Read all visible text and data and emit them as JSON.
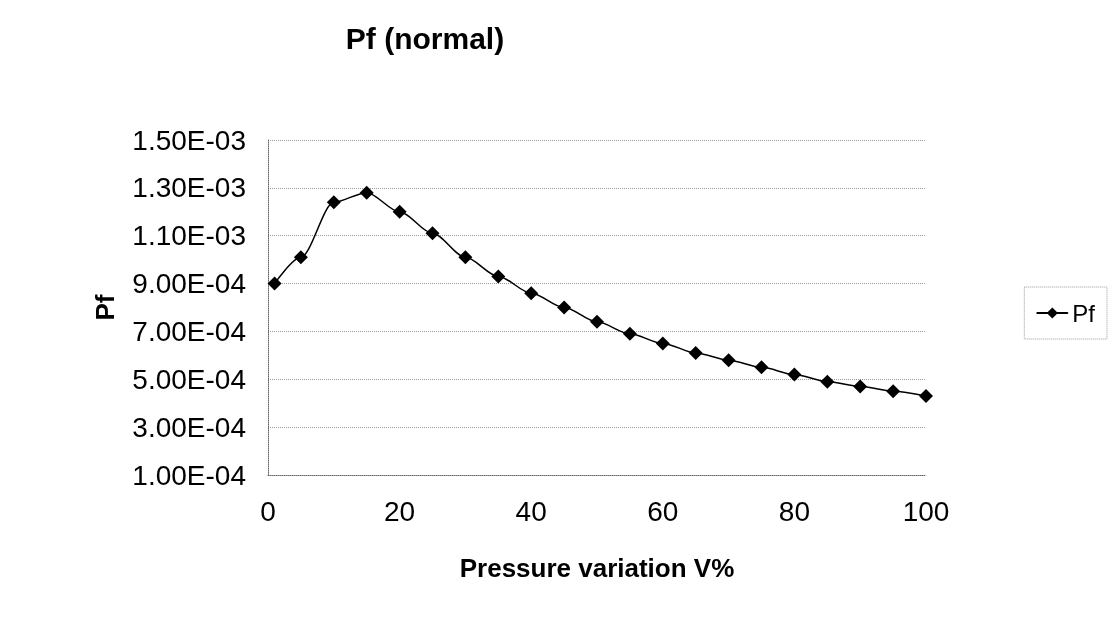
{
  "chart_data": {
    "type": "line",
    "title": "Pf (normal)",
    "xlabel": "Pressure variation V%",
    "ylabel": "Pf",
    "x": [
      1,
      5,
      10,
      15,
      20,
      25,
      30,
      35,
      40,
      45,
      50,
      55,
      60,
      65,
      70,
      75,
      80,
      85,
      90,
      95,
      100
    ],
    "series": [
      {
        "name": "Pf",
        "color": "#000000",
        "values": [
          0.0009,
          0.00101,
          0.00124,
          0.00128,
          0.0012,
          0.00111,
          0.00101,
          0.00093,
          0.00086,
          0.0008,
          0.00074,
          0.00069,
          0.00065,
          0.00061,
          0.00058,
          0.00055,
          0.00052,
          0.00049,
          0.00047,
          0.00045,
          0.00043
        ]
      }
    ],
    "xlim": [
      0,
      100
    ],
    "xticks": [
      0,
      20,
      40,
      60,
      80,
      100
    ],
    "ylim": [
      0.0001,
      0.0015
    ],
    "yticks": [
      {
        "value": 0.0001,
        "label": "1.00E-04"
      },
      {
        "value": 0.0003,
        "label": "3.00E-04"
      },
      {
        "value": 0.0005,
        "label": "5.00E-04"
      },
      {
        "value": 0.0007,
        "label": "7.00E-04"
      },
      {
        "value": 0.0009,
        "label": "9.00E-04"
      },
      {
        "value": 0.0011,
        "label": "1.10E-03"
      },
      {
        "value": 0.0013,
        "label": "1.30E-03"
      },
      {
        "value": 0.0015,
        "label": "1.50E-03"
      }
    ],
    "grid": "y",
    "legend": "right",
    "marker": "diamond",
    "line_style": "solid"
  }
}
